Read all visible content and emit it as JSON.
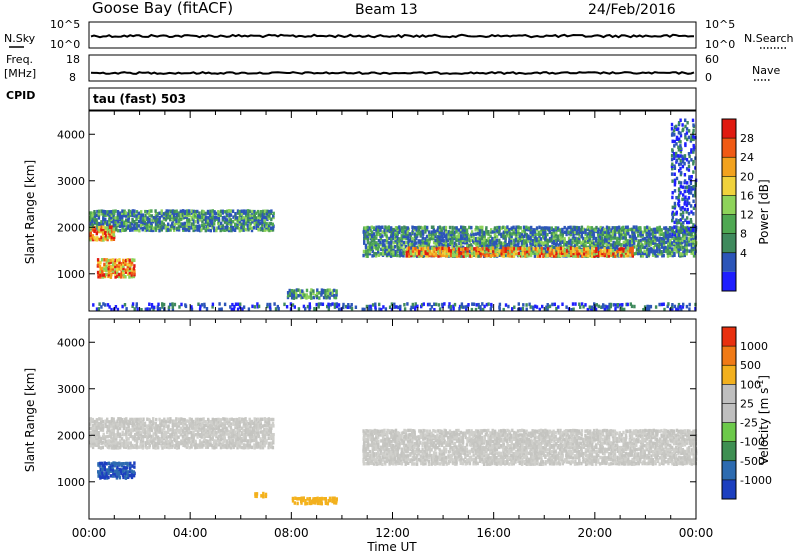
{
  "header": {
    "station": "Goose Bay (fitACF)",
    "beam": "Beam 13",
    "date": "24/Feb/2016"
  },
  "status_panels": {
    "nsky_label": "N.Sky",
    "nsky_ticks": [
      "10^5",
      "10^0"
    ],
    "nsearch_label": "N.Search",
    "nsearch_ticks": [
      "10^5",
      "10^0"
    ],
    "freq_label": "Freq.",
    "freq_unit": "[MHz]",
    "freq_ticks": [
      "18",
      "8"
    ],
    "nave_label": "Nave",
    "nave_ticks": [
      "60",
      "0"
    ],
    "cpid_label": "CPID",
    "cpid_text": "tau (fast) 503"
  },
  "chart_data": [
    {
      "type": "heatmap",
      "name": "power-panel",
      "ylabel": "Slant Range [km]",
      "xlabel": "Time UT",
      "ylim": [
        200,
        4500
      ],
      "xlim": [
        0,
        24
      ],
      "x_ticks": [
        "00:00",
        "04:00",
        "08:00",
        "12:00",
        "16:00",
        "20:00",
        "00:00"
      ],
      "y_ticks": [
        1000,
        2000,
        3000,
        4000
      ],
      "colorbar": {
        "label": "Power [dB]",
        "ticks": [
          "28",
          "24",
          "20",
          "16",
          "12",
          "8",
          "4"
        ],
        "colors": [
          "#1f1fff",
          "#2c55b8",
          "#3f8a5d",
          "#4fa852",
          "#8ed35a",
          "#f0d23c",
          "#f2a21e",
          "#f05a14",
          "#e01a10"
        ]
      },
      "echo_regions": [
        {
          "t0": 0.0,
          "t1": 7.3,
          "r0": 1900,
          "r1": 2350,
          "level": "mid"
        },
        {
          "t0": 0.0,
          "t1": 1.0,
          "r0": 1700,
          "r1": 2000,
          "level": "high"
        },
        {
          "t0": 0.3,
          "t1": 1.8,
          "r0": 900,
          "r1": 1300,
          "level": "high"
        },
        {
          "t0": 10.8,
          "t1": 24.0,
          "r0": 1350,
          "r1": 2000,
          "level": "mid"
        },
        {
          "t0": 12.5,
          "t1": 21.5,
          "r0": 1350,
          "r1": 1550,
          "level": "high"
        },
        {
          "t0": 7.8,
          "t1": 9.8,
          "r0": 450,
          "r1": 650,
          "level": "mid"
        },
        {
          "t0": 23.0,
          "t1": 24.0,
          "r0": 1800,
          "r1": 4300,
          "level": "low"
        },
        {
          "t0": 0.0,
          "t1": 24.0,
          "r0": 200,
          "r1": 350,
          "level": "low"
        }
      ]
    },
    {
      "type": "heatmap",
      "name": "velocity-panel",
      "ylabel": "Slant Range [km]",
      "xlabel": "Time UT",
      "ylim": [
        200,
        4500
      ],
      "xlim": [
        0,
        24
      ],
      "x_ticks": [
        "00:00",
        "04:00",
        "08:00",
        "12:00",
        "16:00",
        "20:00",
        "00:00"
      ],
      "y_ticks": [
        1000,
        2000,
        3000,
        4000
      ],
      "colorbar": {
        "label": "Velocity [m s",
        "label_exp": "-1",
        "label_close": "]",
        "ticks": [
          "1000",
          "500",
          "100",
          "25",
          "-25",
          "-100",
          "-500",
          "-1000"
        ],
        "colors": [
          "#1c3fbf",
          "#2d6bb0",
          "#3e8f52",
          "#6cc94a",
          "#bfbfbf",
          "#bfbfbf",
          "#f2b01e",
          "#f07a16",
          "#e8300f"
        ]
      },
      "echo_regions": [
        {
          "t0": 0.0,
          "t1": 7.3,
          "r0": 1700,
          "r1": 2350,
          "level": "gray"
        },
        {
          "t0": 0.3,
          "t1": 1.8,
          "r0": 1050,
          "r1": 1400,
          "level": "blue"
        },
        {
          "t0": 10.8,
          "t1": 24.0,
          "r0": 1350,
          "r1": 2100,
          "level": "gray"
        },
        {
          "t0": 8.0,
          "t1": 9.8,
          "r0": 500,
          "r1": 650,
          "level": "orange"
        },
        {
          "t0": 6.5,
          "t1": 7.0,
          "r0": 650,
          "r1": 750,
          "level": "orange"
        }
      ]
    }
  ]
}
